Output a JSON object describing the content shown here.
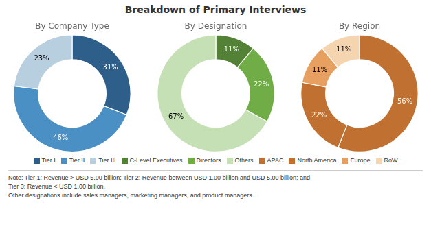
{
  "title": "Breakdown of Primary Interviews",
  "annotations": [
    "Note: Tier 1: Revenue > USD 5.00 billion; Tier 2: Revenue between USD 1.00 billion and USD 5.00 billion; and",
    "Tier 3: Revenue < USD 1.00 billion.",
    "Other designations include sales managers, marketing managers, and product managers."
  ],
  "chart_data": [
    {
      "type": "doughnut",
      "title": "By Company Type",
      "categories": [
        "Tier I",
        "Tier II",
        "Tier III"
      ],
      "values": [
        31,
        46,
        23
      ],
      "value_labels": [
        "31%",
        "46%",
        "23%"
      ],
      "colors": [
        "#2e5f8a",
        "#4a90c4",
        "#b8cfe0"
      ],
      "data_labels": true,
      "legend": "bottom"
    },
    {
      "type": "doughnut",
      "title": "By Designation",
      "categories": [
        "C-Level Executives",
        "Directors",
        "Others"
      ],
      "values": [
        11,
        22,
        67
      ],
      "value_labels": [
        "11%",
        "22%",
        "67%"
      ],
      "colors": [
        "#538135",
        "#70ad47",
        "#c5e0b4"
      ],
      "data_labels": true,
      "legend": "bottom"
    },
    {
      "type": "doughnut",
      "title": "By Region",
      "categories": [
        "APAC",
        "North America",
        "Europe",
        "RoW"
      ],
      "values": [
        56,
        22,
        11,
        11
      ],
      "value_labels": [
        "56%",
        "22%",
        "11%",
        "11%"
      ],
      "colors": [
        "#c07030",
        "#c07030",
        "#e8a060",
        "#f5d5b0"
      ],
      "data_labels": true,
      "legend": "bottom"
    }
  ]
}
